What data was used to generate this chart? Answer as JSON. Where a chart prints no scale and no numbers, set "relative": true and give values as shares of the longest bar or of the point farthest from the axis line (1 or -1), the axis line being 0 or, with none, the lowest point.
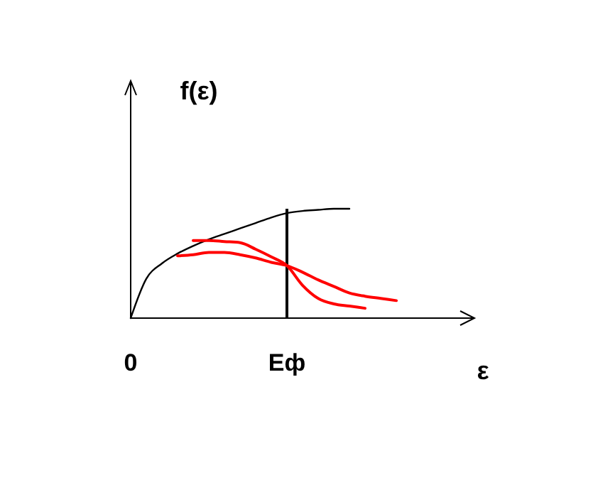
{
  "chart_data": {
    "type": "line",
    "relative": true,
    "xlabel": "ε",
    "ylabel": "f(ε)",
    "categories": [
      "0",
      null,
      null,
      null,
      null,
      null,
      null,
      null,
      null,
      null,
      "Eф",
      null,
      null,
      null,
      null,
      null,
      null,
      null,
      null,
      null,
      null,
      null,
      null
    ],
    "grid": false,
    "legend": false,
    "marker": "none",
    "line_style": "solid",
    "series": [
      {
        "color": "#000000",
        "values": [
          0,
          0.36,
          0.5,
          0.59,
          0.66,
          0.72,
          0.77,
          0.82,
          0.87,
          0.92,
          0.96,
          0.98,
          0.99,
          1.0,
          1.0,
          null,
          null,
          null,
          null,
          null,
          null,
          null,
          null
        ]
      },
      {
        "color": "#ff0000",
        "values": [
          null,
          null,
          null,
          null,
          0.71,
          0.71,
          0.7,
          0.69,
          0.63,
          0.56,
          0.48,
          0.3,
          0.18,
          0.13,
          0.11,
          0.09,
          null,
          null,
          null,
          null,
          null,
          null,
          null
        ]
      },
      {
        "color": "#ff0000",
        "values": [
          null,
          null,
          null,
          0.57,
          0.58,
          0.6,
          0.6,
          0.58,
          0.55,
          0.51,
          0.48,
          0.42,
          0.35,
          0.29,
          0.23,
          0.2,
          0.18,
          0.16,
          null,
          null,
          null,
          null,
          null
        ]
      }
    ],
    "ref_lines": [
      {
        "axis": "x",
        "value": "Eф",
        "color": "#000000"
      }
    ]
  }
}
